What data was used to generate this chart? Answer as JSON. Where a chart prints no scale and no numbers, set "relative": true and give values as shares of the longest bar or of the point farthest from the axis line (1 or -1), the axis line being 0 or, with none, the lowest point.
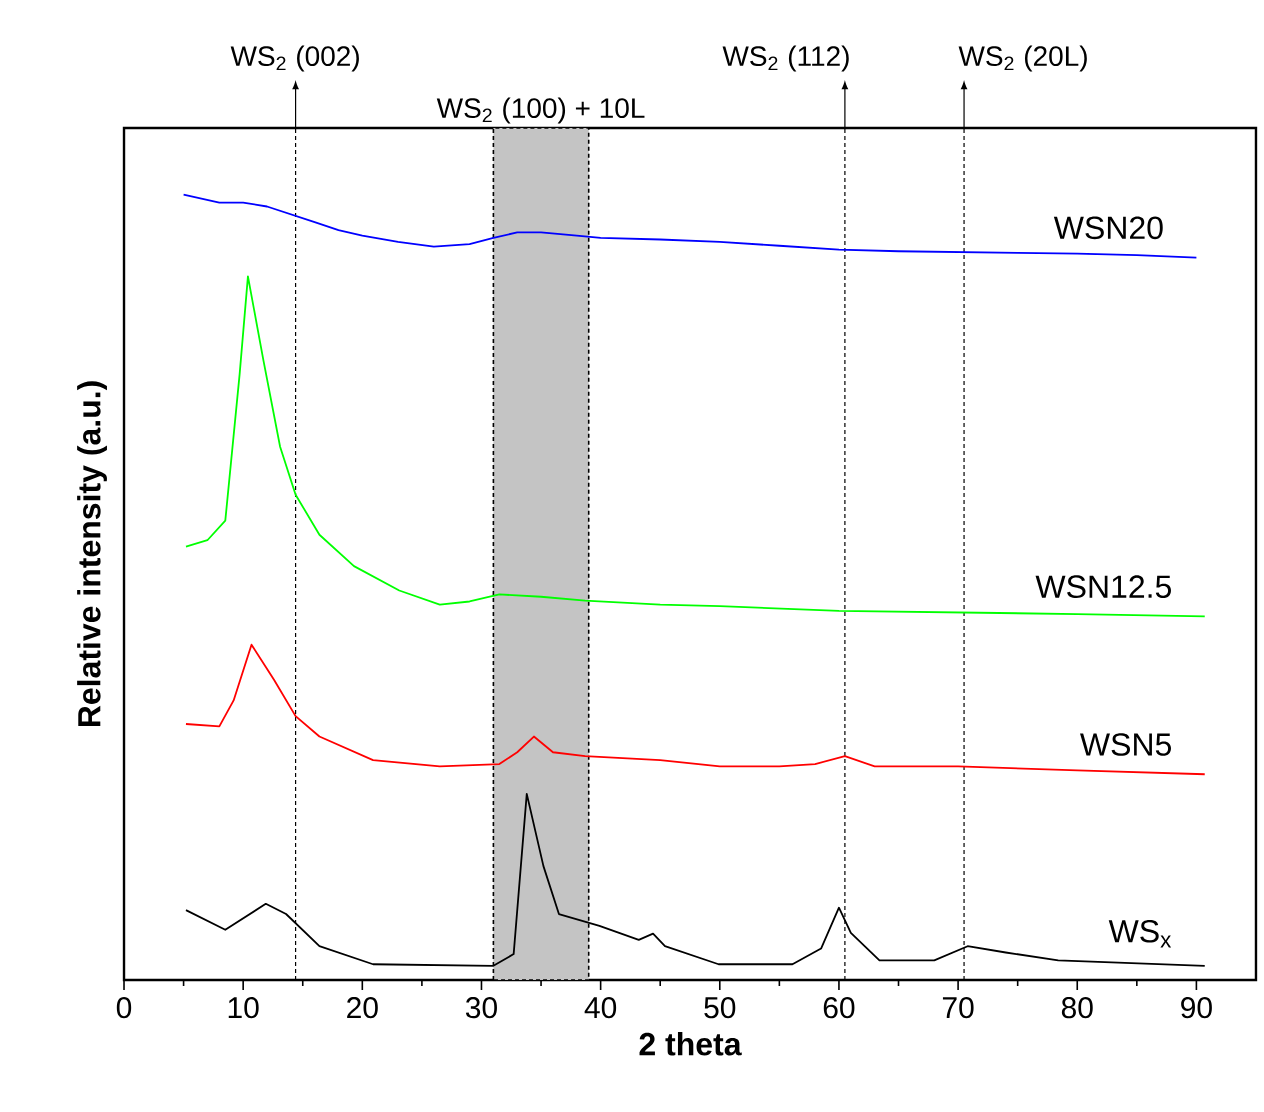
{
  "chart_data": {
    "type": "line",
    "relative": true,
    "xlabel": "2 theta",
    "ylabel": "Relative intensity (a.u.)",
    "xlim": [
      0,
      95
    ],
    "xticks": [
      0,
      10,
      20,
      30,
      40,
      50,
      60,
      70,
      80,
      90
    ],
    "tick_labels": "x",
    "series": [
      {
        "name": "WSN20",
        "color": "#0000ff",
        "x": [
          5,
          8,
          10,
          12,
          14,
          16,
          18,
          20,
          23,
          26,
          29,
          31,
          33,
          35,
          38,
          40,
          45,
          50,
          55,
          60,
          65,
          70,
          75,
          80,
          85,
          90
        ],
        "values": [
          1.0,
          0.99,
          0.99,
          0.985,
          0.975,
          0.965,
          0.955,
          0.948,
          0.94,
          0.934,
          0.937,
          0.945,
          0.952,
          0.952,
          0.948,
          0.945,
          0.943,
          0.94,
          0.935,
          0.93,
          0.928,
          0.927,
          0.926,
          0.925,
          0.923,
          0.92
        ]
      },
      {
        "name": "WSN12.5",
        "color": "#00ff00",
        "x": [
          5.2,
          7,
          8.5,
          9.7,
          10.4,
          11.7,
          13.1,
          14.4,
          16.4,
          19.3,
          23.1,
          26.5,
          29,
          31.5,
          35,
          38.7,
          45,
          50,
          60,
          70,
          80,
          90.7
        ],
        "values": [
          0.552,
          0.56,
          0.585,
          0.771,
          0.896,
          0.789,
          0.679,
          0.618,
          0.567,
          0.527,
          0.496,
          0.478,
          0.482,
          0.491,
          0.488,
          0.483,
          0.478,
          0.476,
          0.47,
          0.468,
          0.466,
          0.463
        ]
      },
      {
        "name": "WSN5",
        "color": "#ff0000",
        "x": [
          5.2,
          8,
          9.2,
          10.7,
          12.6,
          14.4,
          16.4,
          20.9,
          26.5,
          31.5,
          33,
          34.4,
          36,
          38.7,
          45,
          50,
          55,
          58,
          60.5,
          63,
          70,
          80,
          90.7
        ],
        "values": [
          0.326,
          0.323,
          0.356,
          0.427,
          0.382,
          0.336,
          0.31,
          0.28,
          0.272,
          0.275,
          0.29,
          0.31,
          0.29,
          0.285,
          0.28,
          0.272,
          0.272,
          0.275,
          0.285,
          0.272,
          0.272,
          0.267,
          0.262
        ]
      },
      {
        "name": "WS$_{x}$",
        "color": "#000000",
        "x": [
          5.2,
          8.5,
          11.9,
          13.6,
          16.4,
          20.9,
          31,
          32.7,
          33.8,
          35.2,
          36.5,
          39.9,
          43.2,
          44.4,
          45.4,
          49.9,
          56.1,
          58.5,
          60,
          61,
          63.4,
          68,
          70.8,
          74,
          78.4,
          90.7
        ],
        "values": [
          0.089,
          0.064,
          0.097,
          0.084,
          0.043,
          0.02,
          0.018,
          0.033,
          0.237,
          0.145,
          0.084,
          0.069,
          0.051,
          0.059,
          0.043,
          0.02,
          0.02,
          0.04,
          0.092,
          0.06,
          0.025,
          0.025,
          0.043,
          0.035,
          0.025,
          0.018
        ]
      }
    ],
    "ref_lines": [
      {
        "axis": "x",
        "value": 14.4,
        "label": "WS$_{2}$ (002)",
        "line_style": "dashed"
      },
      {
        "axis": "x",
        "value": 60.5,
        "label": "WS$_{2}$ (112)",
        "line_style": "dashed"
      },
      {
        "axis": "x",
        "value": 70.5,
        "label": "WS$_{2}$ (20L)",
        "line_style": "dashed"
      }
    ],
    "bands": [
      {
        "axis": "x",
        "from": 31,
        "to": 39,
        "label": "WS$_{2}$ (100) + 10L",
        "color": "#c4c4c4"
      }
    ]
  }
}
